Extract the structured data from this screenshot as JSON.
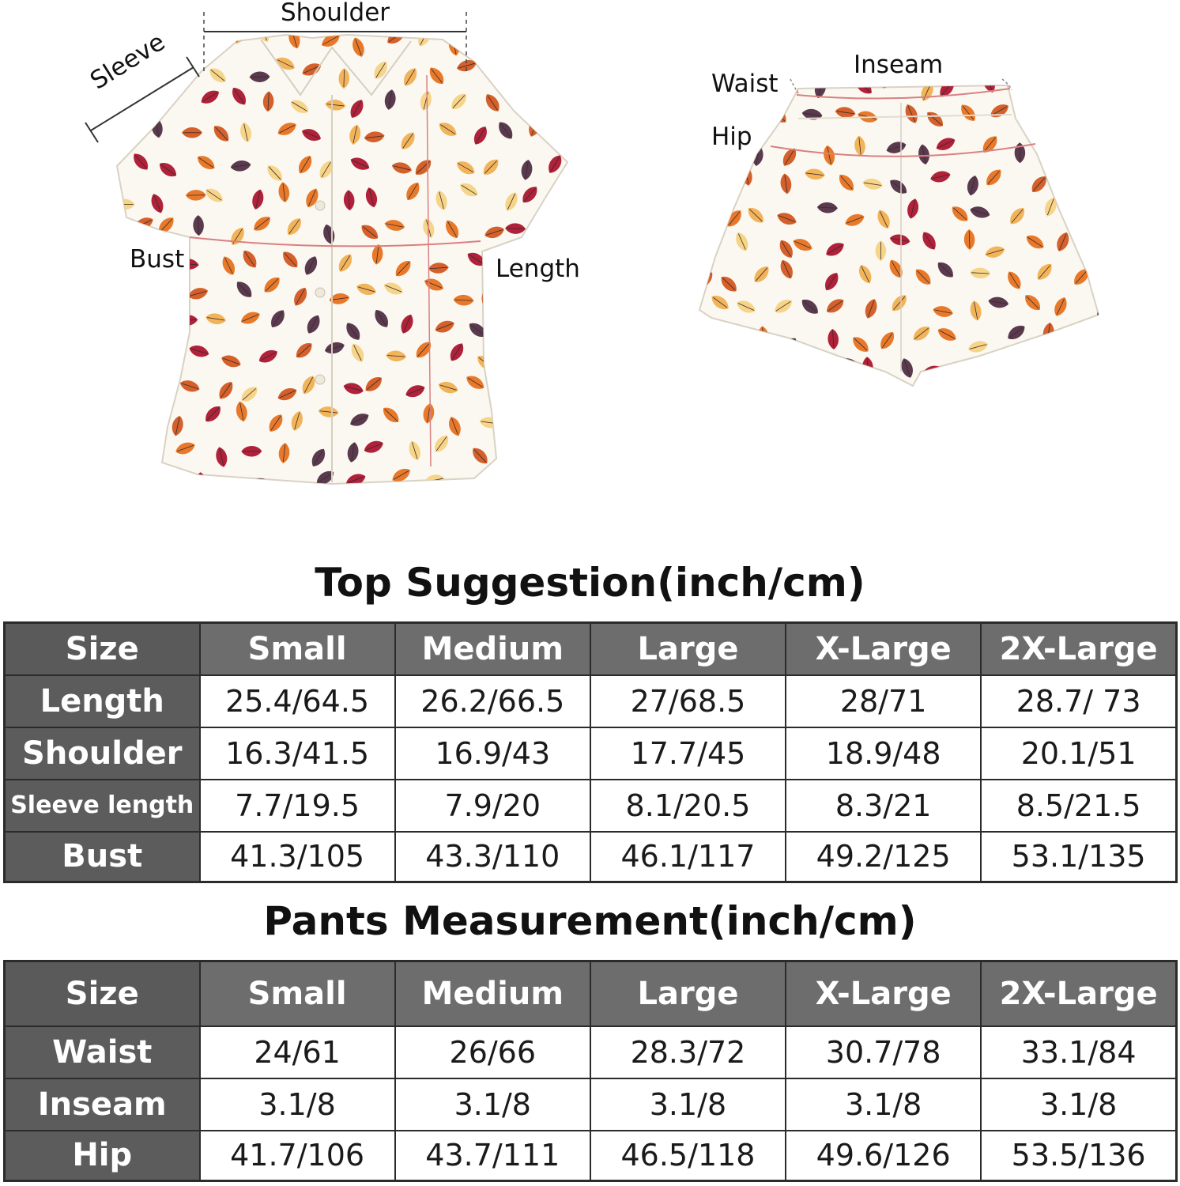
{
  "top_labels": {
    "shoulder": "Shoulder",
    "sleeve": "Sleeve",
    "bust": "Bust",
    "length": "Length"
  },
  "pants_labels": {
    "waist": "Waist",
    "inseam": "Inseam",
    "hip": "Hip"
  },
  "fabric_colors": [
    "#b0213a",
    "#e8792a",
    "#f2b45a",
    "#5a3a4e",
    "#d4602b",
    "#f6d488"
  ],
  "top_table": {
    "title": "Top Suggestion(inch/cm)",
    "corner": "Size",
    "columns": [
      "Small",
      "Medium",
      "Large",
      "X-Large",
      "2X-Large"
    ],
    "rows": [
      {
        "label": "Length",
        "values": [
          "25.4/64.5",
          "26.2/66.5",
          "27/68.5",
          "28/71",
          "28.7/ 73"
        ]
      },
      {
        "label": "Shoulder",
        "values": [
          "16.3/41.5",
          "16.9/43",
          "17.7/45",
          "18.9/48",
          "20.1/51"
        ]
      },
      {
        "label": "Sleeve length",
        "values": [
          "7.7/19.5",
          "7.9/20",
          "8.1/20.5",
          "8.3/21",
          "8.5/21.5"
        ]
      },
      {
        "label": "Bust",
        "values": [
          "41.3/105",
          "43.3/110",
          "46.1/117",
          "49.2/125",
          "53.1/135"
        ]
      }
    ]
  },
  "pants_table": {
    "title": "Pants Measurement(inch/cm)",
    "corner": "Size",
    "columns": [
      "Small",
      "Medium",
      "Large",
      "X-Large",
      "2X-Large"
    ],
    "rows": [
      {
        "label": "Waist",
        "values": [
          "24/61",
          "26/66",
          "28.3/72",
          "30.7/78",
          "33.1/84"
        ]
      },
      {
        "label": "Inseam",
        "values": [
          "3.1/8",
          "3.1/8",
          "3.1/8",
          "3.1/8",
          "3.1/8"
        ]
      },
      {
        "label": "Hip",
        "values": [
          "41.7/106",
          "43.7/111",
          "46.5/118",
          "49.6/126",
          "53.5/136"
        ]
      }
    ]
  }
}
